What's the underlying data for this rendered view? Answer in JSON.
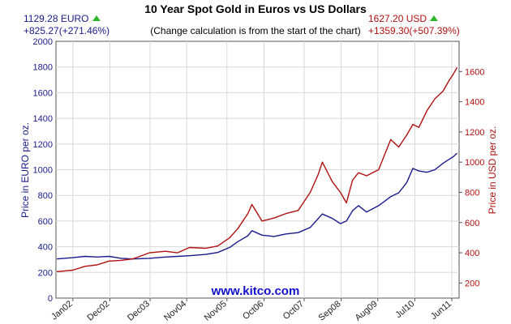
{
  "header": {
    "left_price": "1129.28 EURO",
    "left_change": "+825.27(+271.46%)",
    "right_price": "1627.20 USD",
    "right_change": "+1359.30(+507.39%)"
  },
  "source_label": "www.kitco.com",
  "colors": {
    "eur": "#1a1a8c",
    "usd": "#b01010",
    "grid": "#d8d8d8",
    "up_arrow": "#2bb52b"
  },
  "chart_data": {
    "type": "line",
    "title": "10 Year Spot Gold in Euros vs US Dollars",
    "subtitle": "(Change calculation is from the start of the chart)",
    "ylabel_left": "Price in EURO per oz.",
    "ylabel_right": "Price in USD per oz.",
    "ylim_left": [
      0,
      2000
    ],
    "ylim_right": [
      100,
      1800
    ],
    "left_ticks": [
      0,
      200,
      400,
      600,
      800,
      1000,
      1200,
      1400,
      1600,
      1800,
      2000
    ],
    "right_ticks": [
      200,
      400,
      600,
      800,
      1000,
      1200,
      1400,
      1600
    ],
    "x_ticks": [
      "Jan02",
      "Dec02",
      "Dec03",
      "Nov04",
      "Nov05",
      "Oct06",
      "Oct07",
      "Sep08",
      "Aug09",
      "Jul10",
      "Jun11"
    ],
    "x_tick_positions": [
      2002.0,
      2002.92,
      2003.92,
      2004.83,
      2005.83,
      2006.75,
      2007.75,
      2008.67,
      2009.58,
      2010.5,
      2011.42
    ],
    "xlim": [
      2001.58,
      2011.6
    ],
    "grid": true,
    "series": [
      {
        "name": "EUR",
        "axis": "left",
        "x": [
          2001.6,
          2002.0,
          2002.3,
          2002.6,
          2002.9,
          2003.2,
          2003.5,
          2003.9,
          2004.3,
          2004.6,
          2004.9,
          2005.3,
          2005.6,
          2005.9,
          2006.1,
          2006.35,
          2006.45,
          2006.7,
          2007.0,
          2007.3,
          2007.6,
          2007.9,
          2008.1,
          2008.2,
          2008.45,
          2008.65,
          2008.8,
          2008.95,
          2009.1,
          2009.3,
          2009.6,
          2009.9,
          2010.1,
          2010.3,
          2010.45,
          2010.6,
          2010.8,
          2011.0,
          2011.2,
          2011.35,
          2011.45,
          2011.55
        ],
        "values": [
          305,
          315,
          325,
          320,
          325,
          310,
          305,
          310,
          320,
          325,
          330,
          340,
          355,
          395,
          440,
          485,
          525,
          490,
          480,
          500,
          510,
          550,
          620,
          655,
          620,
          580,
          600,
          680,
          720,
          670,
          720,
          790,
          820,
          900,
          1010,
          990,
          980,
          1000,
          1050,
          1080,
          1100,
          1129
        ]
      },
      {
        "name": "USD",
        "axis": "right",
        "x": [
          2001.6,
          2002.0,
          2002.3,
          2002.6,
          2002.9,
          2003.2,
          2003.5,
          2003.9,
          2004.3,
          2004.6,
          2004.9,
          2005.3,
          2005.6,
          2005.9,
          2006.1,
          2006.35,
          2006.45,
          2006.7,
          2007.0,
          2007.3,
          2007.6,
          2007.9,
          2008.1,
          2008.2,
          2008.45,
          2008.65,
          2008.8,
          2008.95,
          2009.1,
          2009.3,
          2009.6,
          2009.9,
          2010.1,
          2010.3,
          2010.45,
          2010.6,
          2010.8,
          2011.0,
          2011.2,
          2011.35,
          2011.45,
          2011.55
        ],
        "values": [
          275,
          285,
          310,
          320,
          345,
          350,
          360,
          400,
          410,
          400,
          435,
          430,
          445,
          500,
          560,
          660,
          720,
          610,
          630,
          660,
          680,
          800,
          920,
          1000,
          870,
          800,
          730,
          880,
          930,
          910,
          950,
          1150,
          1100,
          1180,
          1250,
          1230,
          1340,
          1420,
          1470,
          1540,
          1580,
          1627
        ]
      }
    ]
  }
}
